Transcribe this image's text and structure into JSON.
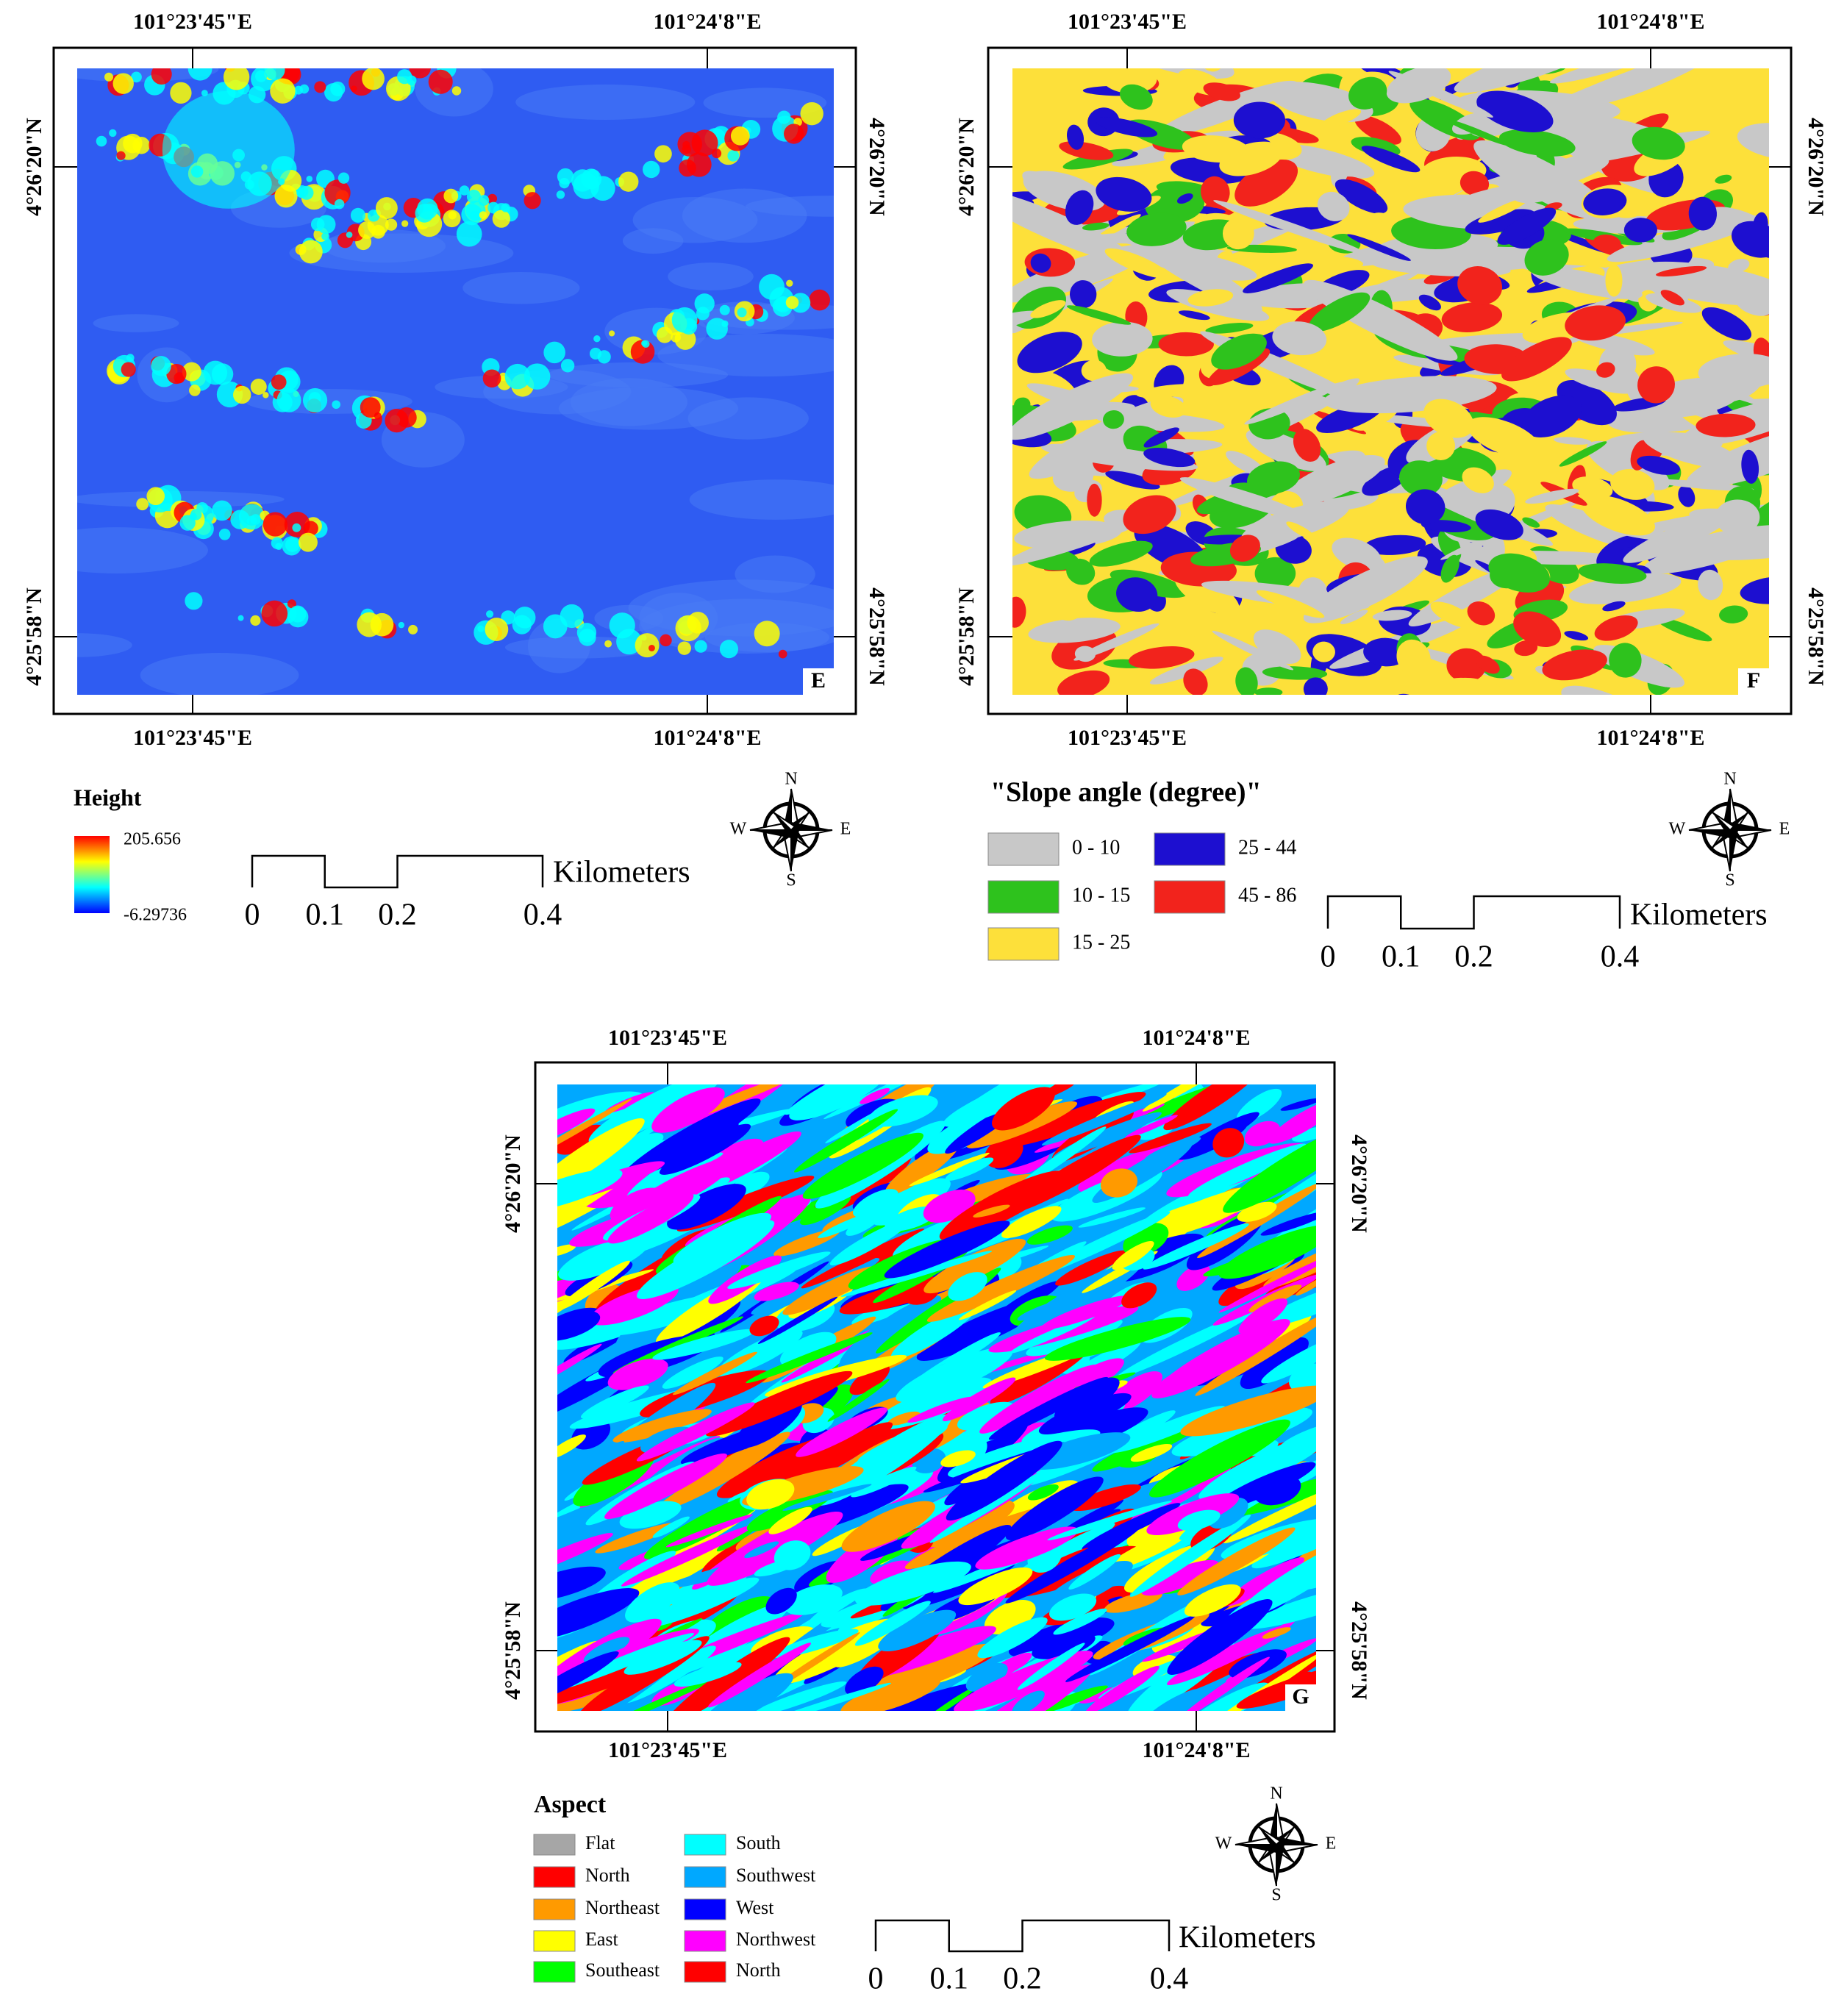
{
  "panels": [
    {
      "label": "E",
      "lon_top": [
        "101°23'45\"E",
        "101°24'8\"E"
      ],
      "lon_bottom": [
        "101°23'45\"E",
        "101°24'8\"E"
      ],
      "lat_left": [
        "4°26'20\"N",
        "4°25'58\"N"
      ],
      "lat_right": [
        "4°26'20\"N",
        "4°25'58\"N"
      ],
      "legend": {
        "title": "Height",
        "max": 205.656,
        "min": -6.29736,
        "ramp": [
          "#ff0000",
          "#ffff00",
          "#00ffff",
          "#0000ff"
        ]
      }
    },
    {
      "label": "F",
      "lon_top": [
        "101°23'45\"E",
        "101°24'8\"E"
      ],
      "lon_bottom": [
        "101°23'45\"E",
        "101°24'8\"E"
      ],
      "lat_left": [
        "4°26'20\"N",
        "4°25'58\"N"
      ],
      "lat_right": [
        "4°26'20\"N",
        "4°25'58\"N"
      ],
      "legend": {
        "title": "\"Slope angle (degree)\"",
        "items": [
          {
            "label": "0 - 10",
            "color": "#c8c8c8"
          },
          {
            "label": "10 - 15",
            "color": "#2ec21d"
          },
          {
            "label": "15 - 25",
            "color": "#fde03a"
          },
          {
            "label": "25 - 44",
            "color": "#1d0fd0"
          },
          {
            "label": "45 - 86",
            "color": "#f2231c"
          }
        ]
      }
    },
    {
      "label": "G",
      "lon_top": [
        "101°23'45\"E",
        "101°24'8\"E"
      ],
      "lon_bottom": [
        "101°23'45\"E",
        "101°24'8\"E"
      ],
      "lat_left": [
        "4°26'20\"N",
        "4°25'58\"N"
      ],
      "lat_right": [
        "4°26'20\"N",
        "4°25'58\"N"
      ],
      "legend": {
        "title": "Aspect",
        "items": [
          {
            "label": "Flat",
            "color": "#a6a6a6"
          },
          {
            "label": "North",
            "color": "#ff0000"
          },
          {
            "label": "Northeast",
            "color": "#ff9a00"
          },
          {
            "label": "East",
            "color": "#ffff00"
          },
          {
            "label": "Southeast",
            "color": "#00ff00"
          },
          {
            "label": "South",
            "color": "#00ffff"
          },
          {
            "label": "Southwest",
            "color": "#00a8ff"
          },
          {
            "label": "West",
            "color": "#0000ff"
          },
          {
            "label": "Northwest",
            "color": "#ff00ff"
          },
          {
            "label": "North",
            "color": "#ff0000"
          }
        ]
      }
    }
  ],
  "scale_bar": {
    "ticks": [
      0,
      0.1,
      0.2,
      0.4
    ],
    "unit": "Kilometers"
  },
  "compass": {
    "n": "N",
    "e": "E",
    "s": "S",
    "w": "W"
  }
}
